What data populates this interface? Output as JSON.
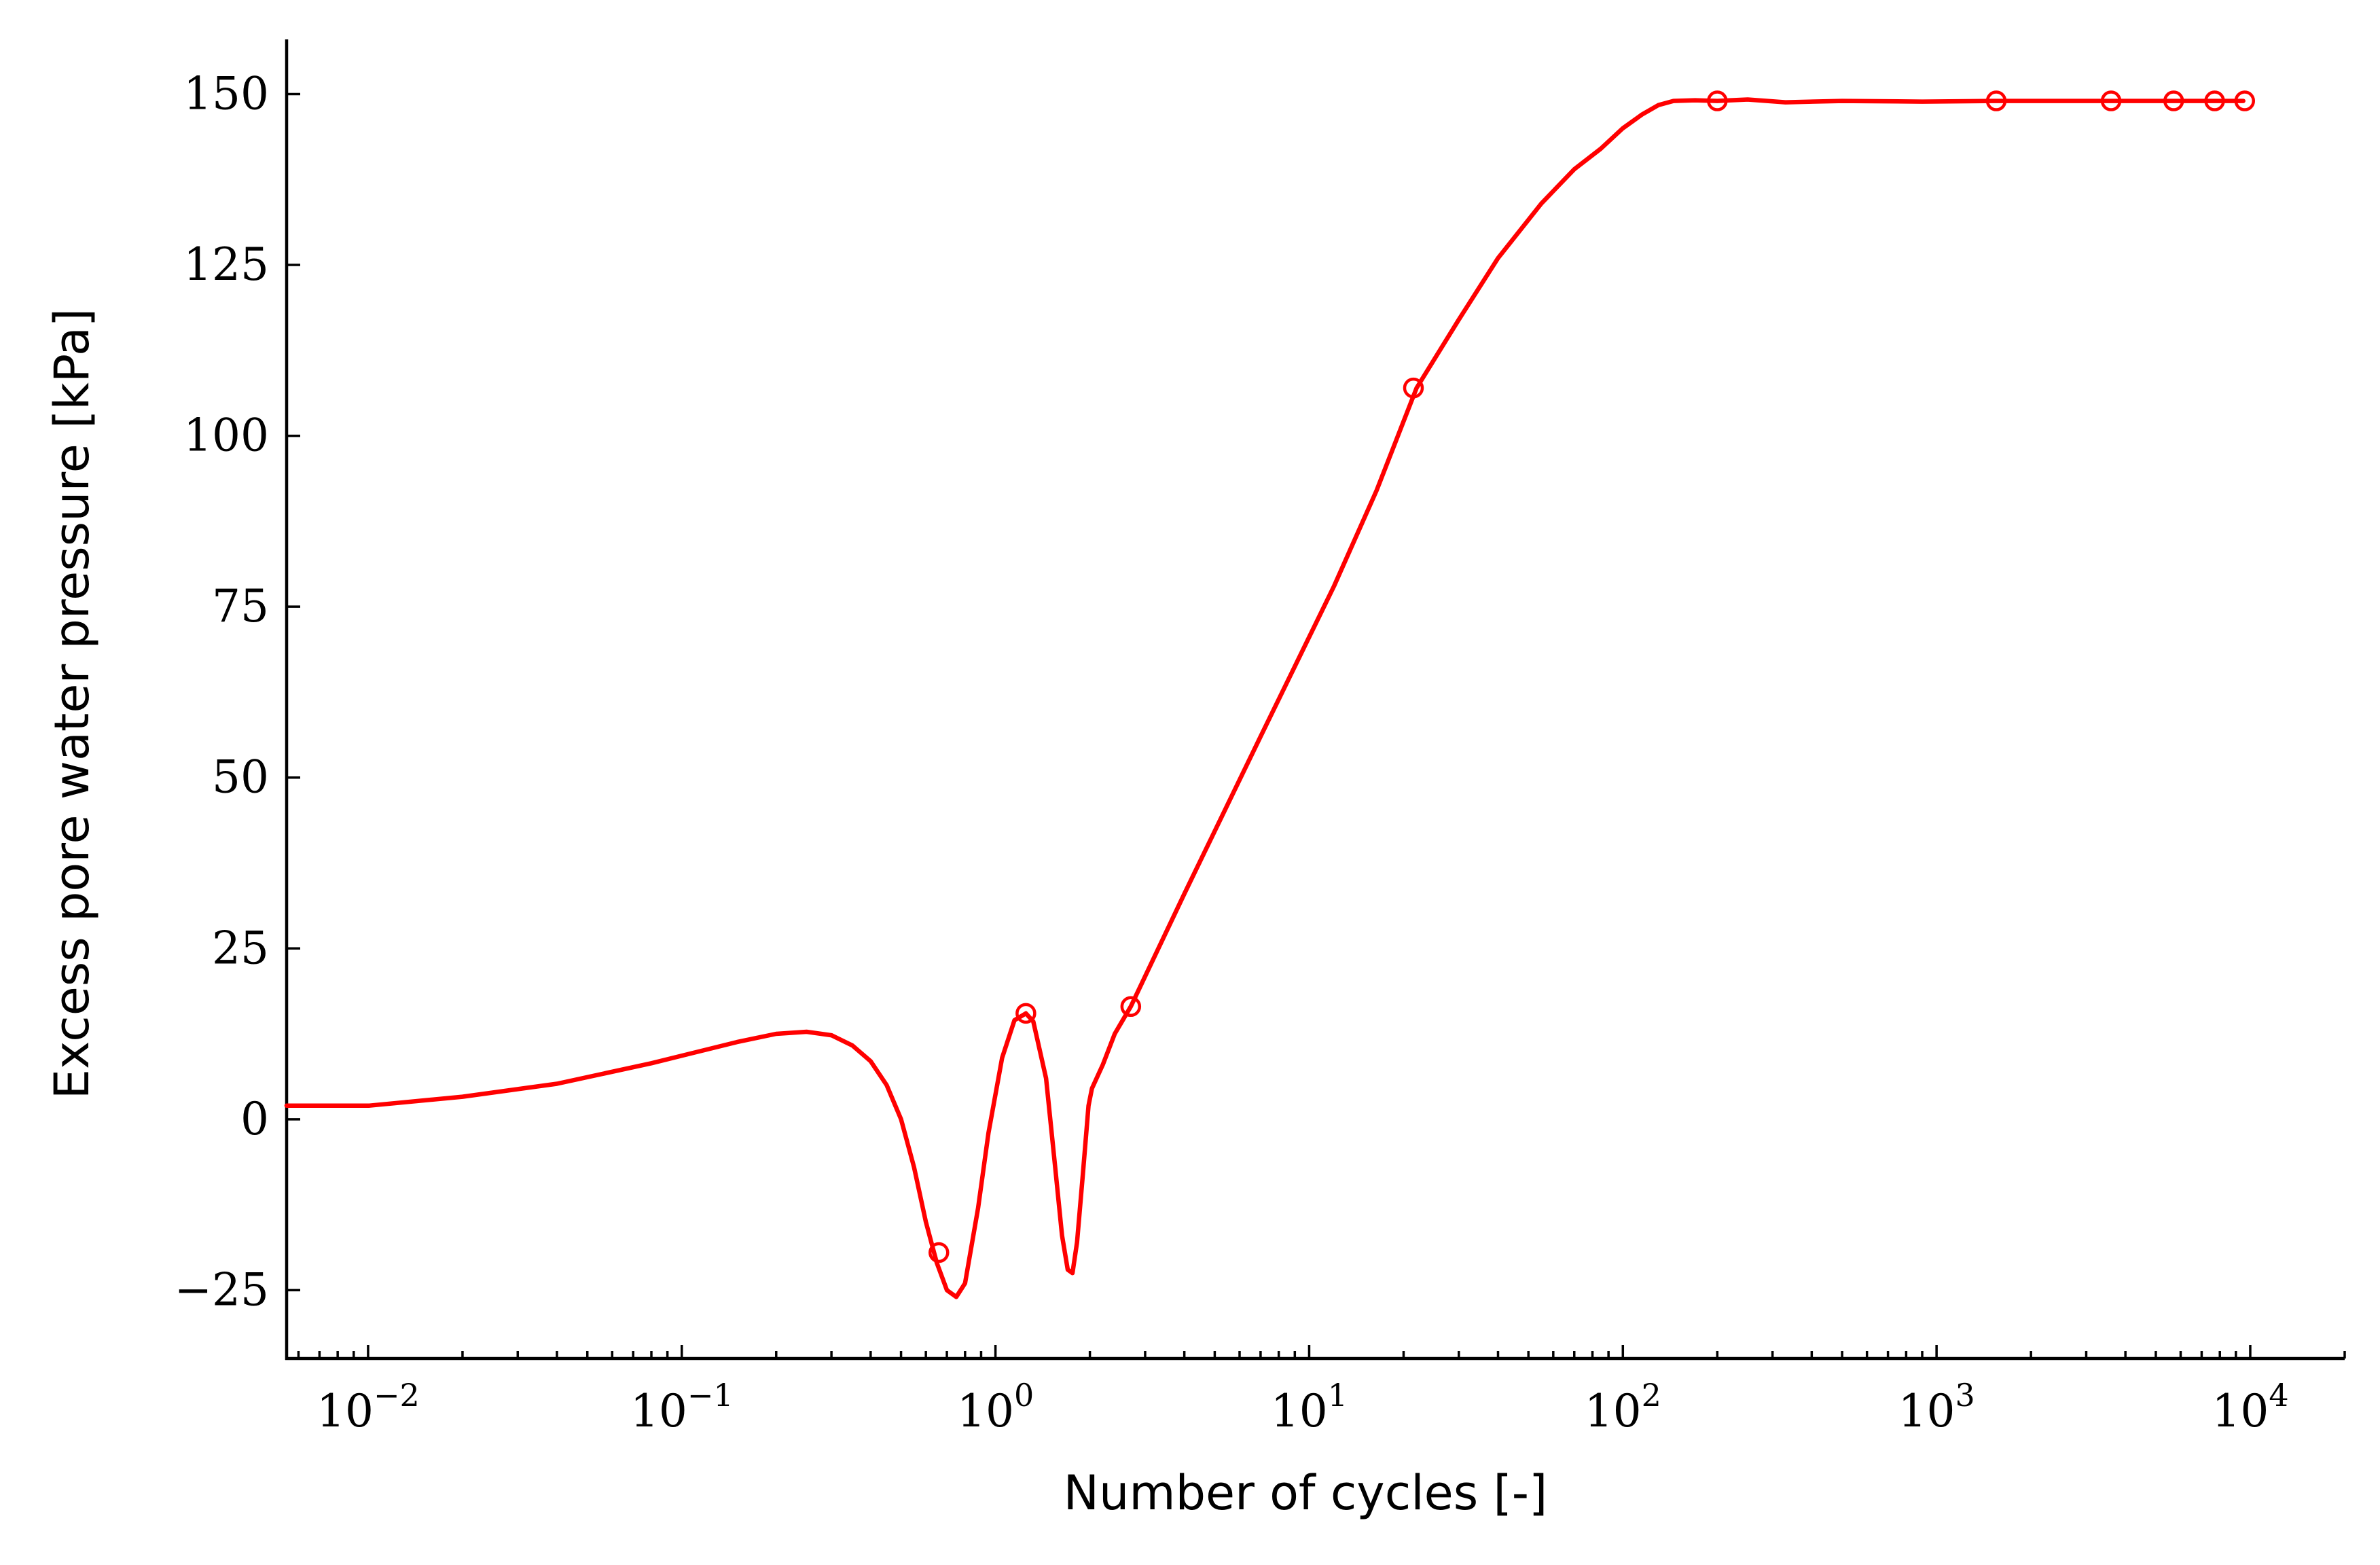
{
  "chart_data": {
    "type": "line",
    "title": "",
    "xlabel": "Number of cycles [-]",
    "ylabel": "Excess pore water pressure [kPa]",
    "xscale": "log",
    "xlim": [
      0.0055,
      20000
    ],
    "ylim": [
      -35,
      158
    ],
    "x_ticks": [
      {
        "value": 0.01,
        "base": "10",
        "exp": "−2"
      },
      {
        "value": 0.1,
        "base": "10",
        "exp": "−1"
      },
      {
        "value": 1,
        "base": "10",
        "exp": "0"
      },
      {
        "value": 10,
        "base": "10",
        "exp": "1"
      },
      {
        "value": 100,
        "base": "10",
        "exp": "2"
      },
      {
        "value": 1000,
        "base": "10",
        "exp": "3"
      },
      {
        "value": 10000,
        "base": "10",
        "exp": "4"
      }
    ],
    "y_ticks": [
      {
        "value": 150,
        "label": "150"
      },
      {
        "value": 125,
        "label": "125"
      },
      {
        "value": 100,
        "label": "100"
      },
      {
        "value": 75,
        "label": "75"
      },
      {
        "value": 50,
        "label": "50"
      },
      {
        "value": 25,
        "label": "25"
      },
      {
        "value": 0,
        "label": "0"
      },
      {
        "value": -25,
        "label": "−25"
      }
    ],
    "grid": false,
    "legend": "none",
    "series": [
      {
        "color": "#ff0000",
        "line": [
          [
            0.0055,
            2
          ],
          [
            0.0101,
            2
          ],
          [
            0.02,
            3.3
          ],
          [
            0.04,
            5.2
          ],
          [
            0.08,
            8.2
          ],
          [
            0.15,
            11.3
          ],
          [
            0.2,
            12.5
          ],
          [
            0.25,
            12.8
          ],
          [
            0.3,
            12.3
          ],
          [
            0.35,
            10.8
          ],
          [
            0.4,
            8.5
          ],
          [
            0.45,
            5.0
          ],
          [
            0.5,
            0
          ],
          [
            0.55,
            -7
          ],
          [
            0.6,
            -15
          ],
          [
            0.65,
            -21
          ],
          [
            0.7,
            -25
          ],
          [
            0.75,
            -26
          ],
          [
            0.8,
            -24
          ],
          [
            0.88,
            -13
          ],
          [
            0.95,
            -2
          ],
          [
            1.05,
            9
          ],
          [
            1.15,
            14.5
          ],
          [
            1.25,
            15.5
          ],
          [
            1.32,
            14.3
          ],
          [
            1.45,
            6
          ],
          [
            1.55,
            -7
          ],
          [
            1.63,
            -17
          ],
          [
            1.7,
            -22
          ],
          [
            1.76,
            -22.5
          ],
          [
            1.82,
            -18
          ],
          [
            1.9,
            -8
          ],
          [
            1.98,
            2
          ],
          [
            2.03,
            4.5
          ],
          [
            2.2,
            8
          ],
          [
            2.4,
            12.5
          ],
          [
            2.7,
            16.5
          ],
          [
            4,
            33
          ],
          [
            7,
            56
          ],
          [
            12,
            78
          ],
          [
            16.4,
            92
          ],
          [
            22,
            107
          ],
          [
            30,
            117
          ],
          [
            40,
            126
          ],
          [
            55,
            134
          ],
          [
            70,
            139
          ],
          [
            85,
            142
          ],
          [
            100,
            145
          ],
          [
            115,
            147
          ],
          [
            130,
            148.4
          ],
          [
            145,
            149
          ],
          [
            170,
            149.1
          ],
          [
            200,
            149
          ],
          [
            250,
            149.2
          ],
          [
            330,
            148.8
          ],
          [
            500,
            149
          ],
          [
            900,
            148.9
          ],
          [
            1500,
            149
          ],
          [
            3500,
            149
          ],
          [
            5500,
            149
          ],
          [
            7500,
            149
          ],
          [
            9500,
            149
          ]
        ],
        "markers": [
          [
            0.66,
            -19.5
          ],
          [
            1.25,
            15.5
          ],
          [
            2.7,
            16.5
          ],
          [
            21.5,
            107
          ],
          [
            200,
            149
          ],
          [
            1550,
            149
          ],
          [
            3600,
            149
          ],
          [
            5700,
            149
          ],
          [
            7700,
            149
          ],
          [
            9600,
            149
          ]
        ]
      }
    ]
  }
}
